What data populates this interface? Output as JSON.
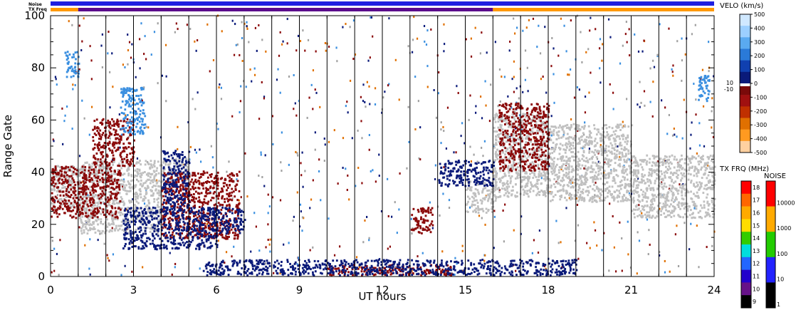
{
  "chart_data": {
    "type": "heatmap",
    "title": "",
    "xlabel": "UT hours",
    "ylabel": "Range Gate",
    "xlim": [
      0,
      24
    ],
    "ylim": [
      0,
      100
    ],
    "x_ticks": [
      "0",
      "3",
      "6",
      "9",
      "12",
      "15",
      "18",
      "21",
      "24"
    ],
    "y_ticks": [
      "0",
      "20",
      "40",
      "60",
      "80",
      "100"
    ],
    "scan_boundaries_ut": [
      1,
      2,
      3,
      4,
      5,
      6,
      7,
      8,
      9,
      10,
      11,
      12,
      13,
      14,
      15,
      16,
      17,
      18,
      19,
      20,
      21,
      22,
      23
    ],
    "top_bars": {
      "noise_label": "Noise",
      "txfreq_label": "TX Freq",
      "noise_color": "#1f1fe0",
      "txfreq_segments": [
        {
          "start": 0,
          "end": 1,
          "color": "#ff9900"
        },
        {
          "start": 1,
          "end": 16,
          "color": "#5a0a8c"
        },
        {
          "start": 16,
          "end": 24,
          "color": "#ff9900"
        }
      ]
    },
    "velocity_colorbar": {
      "title": "VELO (km/s)",
      "ticks": [
        "500",
        "400",
        "300",
        "200",
        "100",
        "0",
        "-100",
        "-200",
        "-300",
        "-400",
        "-500"
      ],
      "ground_scatter_labels": [
        "10",
        "-10"
      ],
      "colors": [
        "#d0e8ff",
        "#9ccfff",
        "#5aaaf0",
        "#2a7ad8",
        "#1040b0",
        "#0a1a7a",
        "#7a0a0a",
        "#a01010",
        "#c03000",
        "#e07000",
        "#ff9a20",
        "#ffd0a0"
      ]
    },
    "txfreq_colorbar": {
      "title": "TX FRQ (MHz)",
      "ticks": [
        "18",
        "17",
        "16",
        "15",
        "14",
        "13",
        "12",
        "11",
        "10",
        "9"
      ],
      "colors": [
        "#ff0000",
        "#ff6600",
        "#ffaa00",
        "#ffdd00",
        "#33cc00",
        "#00dddd",
        "#2266ff",
        "#2200cc",
        "#661188",
        "#000000"
      ]
    },
    "noise_colorbar": {
      "title": "NOISE",
      "ticks": [
        "10000",
        "1000",
        "100",
        "10",
        "1"
      ],
      "colors": [
        "#ff0000",
        "#ffaa00",
        "#22cc00",
        "#2222ff",
        "#000000"
      ]
    },
    "series": [
      {
        "category": "ground_scatter",
        "color": "#c0c0c0",
        "regions": [
          {
            "x0": 0,
            "x1": 1.2,
            "y0": 26,
            "y1": 42
          },
          {
            "x0": 1.0,
            "x1": 4.0,
            "y0": 16,
            "y1": 44
          },
          {
            "x0": 4.0,
            "x1": 5.0,
            "y0": 36,
            "y1": 45
          },
          {
            "x0": 15.0,
            "x1": 16.1,
            "y0": 24,
            "y1": 36
          },
          {
            "x0": 16.0,
            "x1": 18.0,
            "y0": 30,
            "y1": 62
          },
          {
            "x0": 18.0,
            "x1": 21.0,
            "y0": 28,
            "y1": 58
          },
          {
            "x0": 21.0,
            "x1": 24.0,
            "y0": 22,
            "y1": 46
          }
        ]
      },
      {
        "category": "negative_velocity",
        "color": "#8b0a0a",
        "regions": [
          {
            "x0": 0.0,
            "x1": 2.5,
            "y0": 22,
            "y1": 42
          },
          {
            "x0": 1.5,
            "x1": 3.0,
            "y0": 42,
            "y1": 60
          },
          {
            "x0": 4.0,
            "x1": 6.8,
            "y0": 14,
            "y1": 40
          },
          {
            "x0": 13.0,
            "x1": 13.8,
            "y0": 16,
            "y1": 26
          },
          {
            "x0": 10.0,
            "x1": 14.5,
            "y0": 0,
            "y1": 4
          },
          {
            "x0": 16.2,
            "x1": 18.0,
            "y0": 40,
            "y1": 66
          }
        ]
      },
      {
        "category": "positive_velocity_low",
        "color": "#0a1a7a",
        "regions": [
          {
            "x0": 2.6,
            "x1": 6.0,
            "y0": 10,
            "y1": 26
          },
          {
            "x0": 5.8,
            "x1": 7.0,
            "y0": 16,
            "y1": 26
          },
          {
            "x0": 4.0,
            "x1": 5.0,
            "y0": 24,
            "y1": 48
          },
          {
            "x0": 14.0,
            "x1": 16.0,
            "y0": 34,
            "y1": 44
          },
          {
            "x0": 5.5,
            "x1": 19.0,
            "y0": 0,
            "y1": 6
          }
        ]
      },
      {
        "category": "positive_velocity_high",
        "color": "#3a8fe0",
        "regions": [
          {
            "x0": 0.5,
            "x1": 1.0,
            "y0": 76,
            "y1": 86
          },
          {
            "x0": 2.5,
            "x1": 3.4,
            "y0": 54,
            "y1": 72
          },
          {
            "x0": 23.4,
            "x1": 23.8,
            "y0": 66,
            "y1": 78
          }
        ]
      }
    ]
  }
}
